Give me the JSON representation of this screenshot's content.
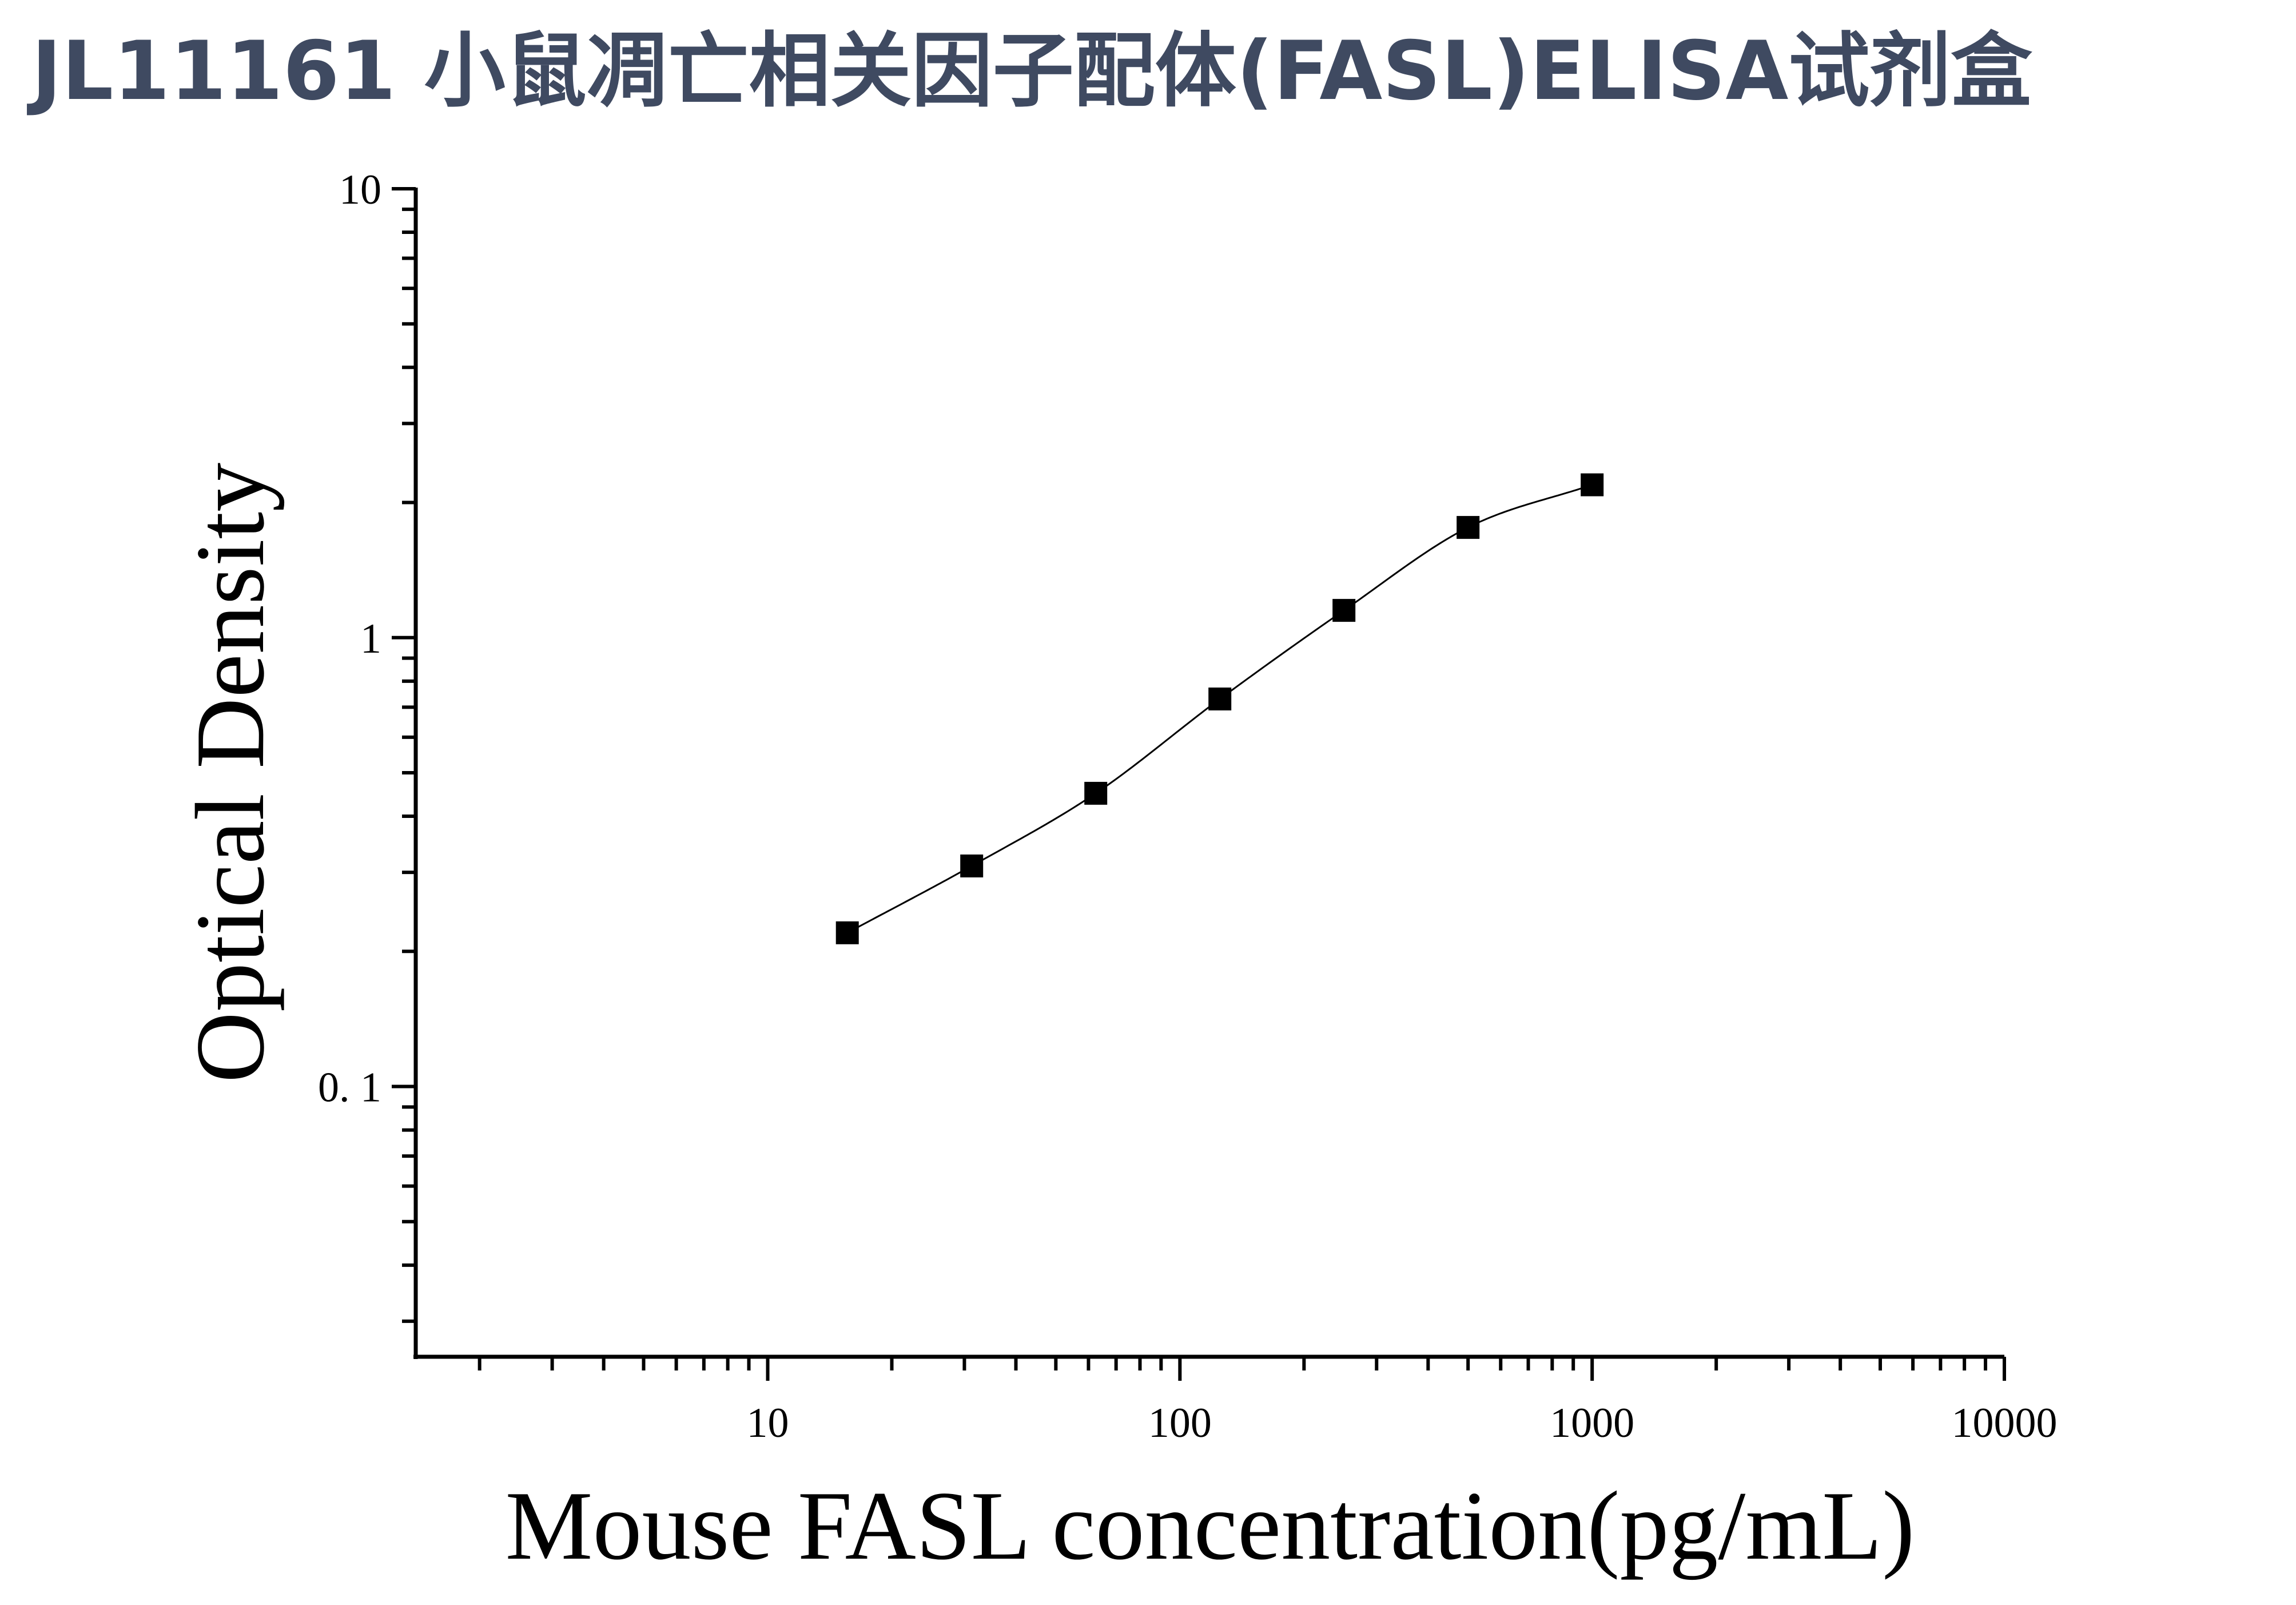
{
  "chart_data": {
    "type": "scatter",
    "title": "JL11161 小鼠凋亡相关因子配体(FASL)ELISA试剂盒",
    "xlabel": "Mouse FASL concentration(pg/mL)",
    "ylabel": "Optical Density",
    "x_scale": "log",
    "y_scale": "log",
    "xlim": [
      1.4,
      10000
    ],
    "ylim": [
      0.025,
      10
    ],
    "x_ticks": [
      {
        "value": 10,
        "label": "10"
      },
      {
        "value": 100,
        "label": "100"
      },
      {
        "value": 1000,
        "label": "1000"
      },
      {
        "value": 10000,
        "label": "10000"
      }
    ],
    "y_ticks": [
      {
        "value": 10,
        "label": "10"
      },
      {
        "value": 1,
        "label": "1"
      },
      {
        "value": 0.1,
        "label": "0. 1"
      }
    ],
    "grid": false,
    "legend": "none",
    "marker_color": "#000000",
    "line_color": "#000000",
    "series": [
      {
        "marker": "square",
        "x": [
          15.6,
          31.25,
          62.5,
          125,
          250,
          500,
          1000
        ],
        "y": [
          0.22,
          0.31,
          0.45,
          0.73,
          1.15,
          1.76,
          2.19
        ]
      }
    ],
    "fit_curve": {
      "type": "4PL",
      "x_range": [
        15.6,
        1000
      ]
    }
  }
}
